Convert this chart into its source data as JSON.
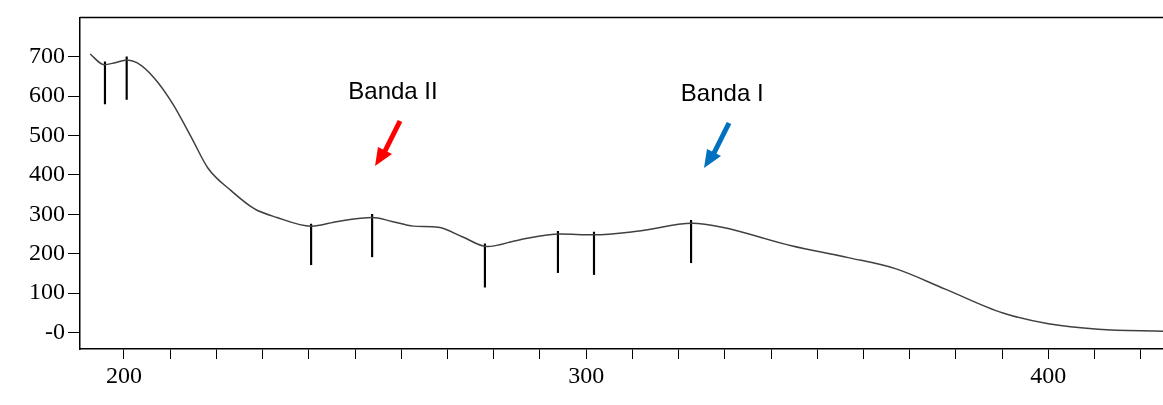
{
  "chart_data": {
    "type": "line",
    "series": [
      {
        "color": "#404040",
        "x": [
          192.7,
          195.7,
          198.1,
          200.6,
          202.8,
          206.5,
          210.6,
          214.7,
          218.2,
          223.2,
          228.1,
          233.1,
          240.5,
          246.3,
          253.7,
          258,
          262.6,
          268,
          273.2,
          278.6,
          285.5,
          294.4,
          301.5,
          311,
          323,
          329.4,
          344.4,
          356.7,
          366.9,
          377.7,
          390,
          400,
          410.8,
          424.8
        ],
        "values": [
          707,
          680,
          685,
          692,
          685,
          647,
          580,
          493,
          417,
          360,
          315,
          292,
          270,
          282,
          292,
          282,
          270,
          267,
          243,
          218,
          235,
          250,
          248,
          257,
          277,
          267,
          220,
          190,
          162,
          110,
          50,
          22,
          8,
          3
        ]
      },
      {
        "type": "bar",
        "color": "#000000",
        "x": [
          195.9,
          200.6,
          240.5,
          253.7,
          278.1,
          293.9,
          301.7,
          322.7
        ],
        "base": [
          580,
          592,
          172,
          192,
          115,
          152,
          147,
          177
        ],
        "values": [
          107,
          108,
          103,
          108,
          110,
          105,
          108,
          108
        ]
      }
    ],
    "xlim": [
      190.5,
      424.8
    ],
    "ylim": [
      -42,
      800
    ],
    "xticks": [
      {
        "value": 200,
        "label": "200"
      },
      {
        "value": 210,
        "label": null
      },
      {
        "value": 220,
        "label": null
      },
      {
        "value": 230,
        "label": null
      },
      {
        "value": 240,
        "label": null
      },
      {
        "value": 250,
        "label": null
      },
      {
        "value": 260,
        "label": null
      },
      {
        "value": 270,
        "label": null
      },
      {
        "value": 280,
        "label": null
      },
      {
        "value": 290,
        "label": null
      },
      {
        "value": 300,
        "label": "300"
      },
      {
        "value": 310,
        "label": null
      },
      {
        "value": 320,
        "label": null
      },
      {
        "value": 330,
        "label": null
      },
      {
        "value": 340,
        "label": null
      },
      {
        "value": 350,
        "label": null
      },
      {
        "value": 360,
        "label": null
      },
      {
        "value": 370,
        "label": null
      },
      {
        "value": 380,
        "label": null
      },
      {
        "value": 390,
        "label": null
      },
      {
        "value": 400,
        "label": "400"
      },
      {
        "value": 410,
        "label": null
      },
      {
        "value": 420,
        "label": null
      }
    ],
    "yticks": [
      {
        "value": 0,
        "label": "-0"
      },
      100,
      200,
      300,
      400,
      500,
      600,
      700
    ],
    "annotations": [
      "Banda II",
      "Banda I"
    ],
    "grid": false,
    "legend": false,
    "line_style": "solid"
  }
}
